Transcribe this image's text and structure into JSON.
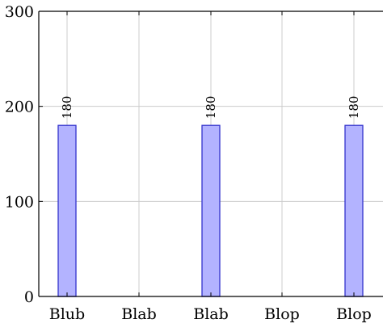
{
  "chart_data": {
    "type": "bar",
    "title": "",
    "xlabel": "",
    "ylabel": "",
    "categories": [
      "Blub",
      "Blab",
      "Blab",
      "Blop",
      "Blop"
    ],
    "series": [
      {
        "values": [
          180,
          null,
          180,
          null,
          180
        ]
      }
    ],
    "data_labels": [
      "180",
      "",
      "180",
      "",
      "180"
    ],
    "ylim": [
      0,
      300
    ],
    "yticks": [
      0,
      100,
      200,
      300
    ],
    "ytick_labels": [
      "0",
      "100",
      "200",
      "300"
    ],
    "grid": "horizontal and vertical, light gray",
    "colors": {
      "bar_fill": "#b3b3ff",
      "bar_stroke": "#3333cc",
      "grid": "#cccccc",
      "axis": "#000000"
    }
  }
}
